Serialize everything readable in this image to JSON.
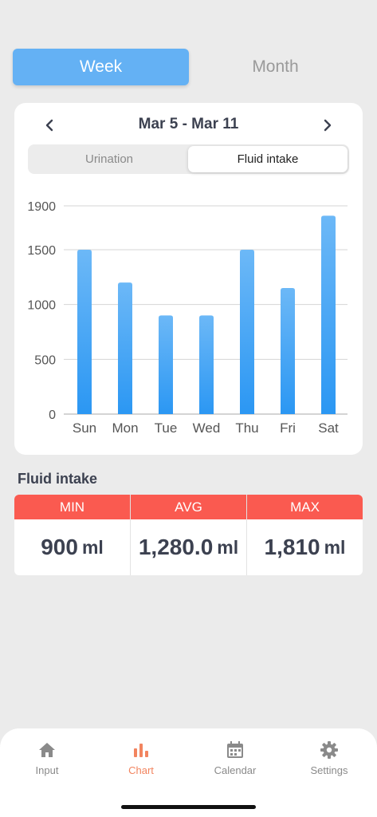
{
  "period_toggle": {
    "week_label": "Week",
    "month_label": "Month",
    "selected": "Week"
  },
  "date_nav": {
    "range": "Mar 5 - Mar 11"
  },
  "segment": {
    "urination_label": "Urination",
    "fluid_label": "Fluid intake",
    "selected": "Fluid intake"
  },
  "chart_data": {
    "type": "bar",
    "categories": [
      "Sun",
      "Mon",
      "Tue",
      "Wed",
      "Thu",
      "Fri",
      "Sat"
    ],
    "values": [
      1500,
      1200,
      900,
      900,
      1500,
      1150,
      1810
    ],
    "y_ticks": [
      "0",
      "500",
      "1000",
      "1500",
      "1900"
    ],
    "y_tick_values": [
      0,
      500,
      1000,
      1500,
      1900
    ],
    "ylim": [
      0,
      1900
    ],
    "grid": true,
    "bar_color": "#4aa7f7"
  },
  "stats": {
    "title": "Fluid intake",
    "columns": [
      {
        "label": "MIN",
        "value": "900",
        "unit": "ml"
      },
      {
        "label": "AVG",
        "value": "1,280.0",
        "unit": "ml"
      },
      {
        "label": "MAX",
        "value": "1,810",
        "unit": "ml"
      }
    ],
    "header_color": "#fa5a50"
  },
  "tabbar": {
    "items": [
      {
        "label": "Input",
        "icon": "home-icon"
      },
      {
        "label": "Chart",
        "icon": "bar-chart-icon"
      },
      {
        "label": "Calendar",
        "icon": "calendar-icon"
      },
      {
        "label": "Settings",
        "icon": "gear-icon"
      }
    ],
    "active": "Chart",
    "active_color": "#f2845f"
  }
}
